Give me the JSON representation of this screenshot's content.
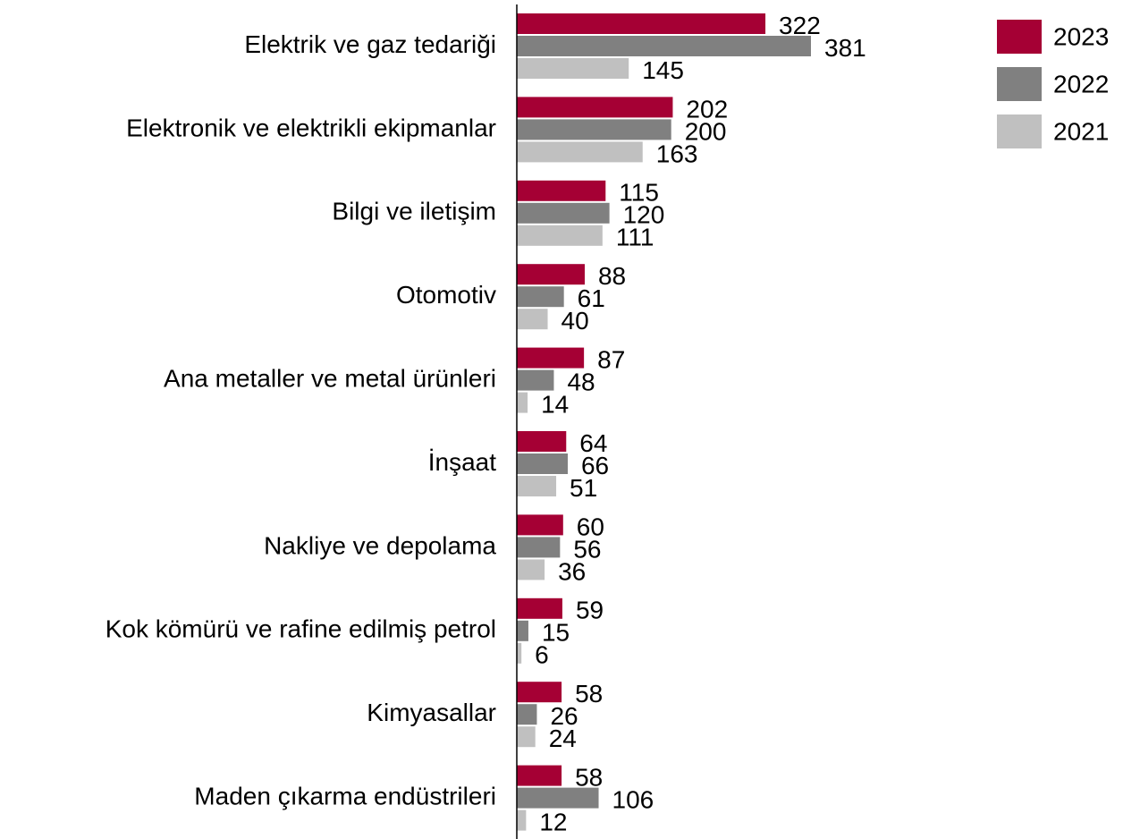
{
  "chart_data": {
    "type": "bar",
    "orientation": "horizontal",
    "categories": [
      "Elektrik ve gaz tedariği",
      "Elektronik ve elektrikli ekipmanlar",
      "Bilgi ve iletişim",
      "Otomotiv",
      "Ana metaller ve metal ürünleri",
      "İnşaat",
      "Nakliye ve depolama",
      "Kok kömürü ve rafine edilmiş petrol",
      "Kimyasallar",
      "Maden çıkarma endüstrileri"
    ],
    "series": [
      {
        "name": "2023",
        "color": "#a50034",
        "values": [
          322,
          202,
          115,
          88,
          87,
          64,
          60,
          59,
          58,
          58
        ]
      },
      {
        "name": "2022",
        "color": "#808080",
        "values": [
          381,
          200,
          120,
          61,
          48,
          66,
          56,
          15,
          26,
          106
        ]
      },
      {
        "name": "2021",
        "color": "#c0c0c0",
        "values": [
          145,
          163,
          111,
          40,
          14,
          51,
          36,
          6,
          24,
          12
        ]
      }
    ],
    "legend": "top-right"
  }
}
